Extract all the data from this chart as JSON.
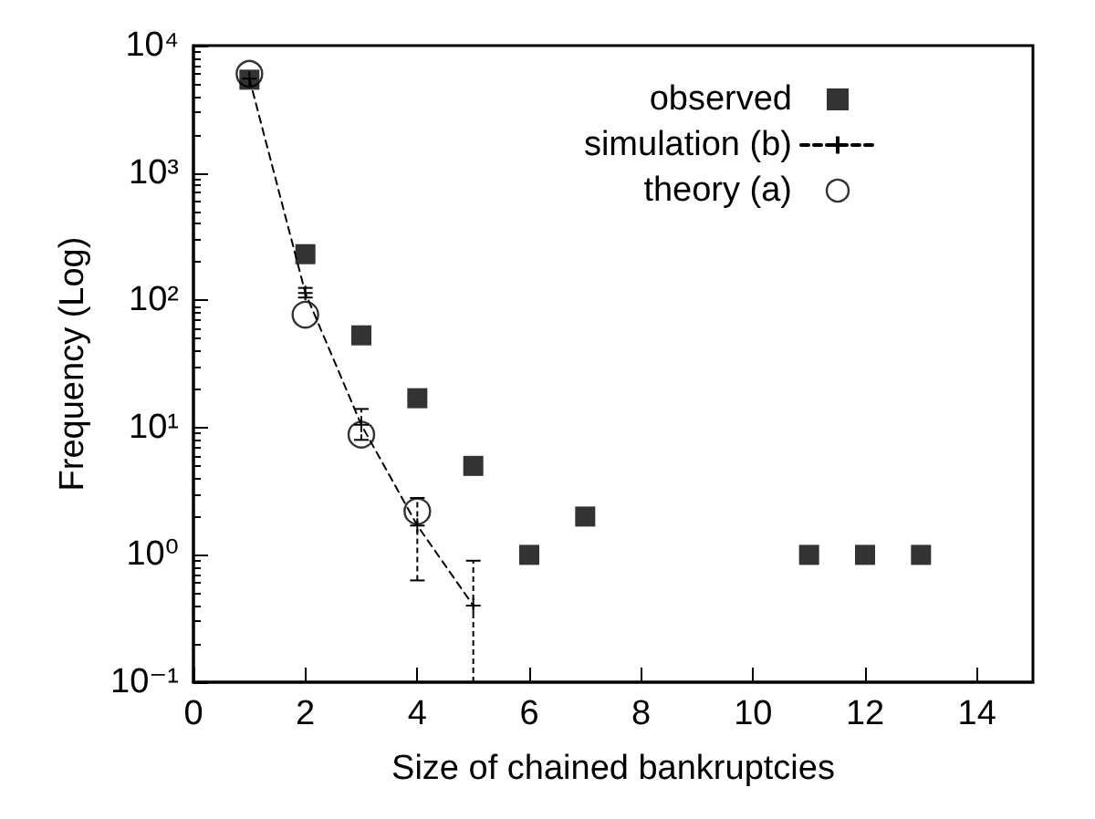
{
  "chart_data": {
    "type": "scatter",
    "xlabel": "Size of chained bankruptcies",
    "ylabel": "Frequency (Log)",
    "log": "y",
    "grid": false,
    "legend": "top right",
    "xlim": [
      0,
      15
    ],
    "xticks": [
      0,
      2,
      4,
      6,
      8,
      10,
      12,
      14
    ],
    "ylim": [
      0.1,
      10000
    ],
    "yticks": [
      {
        "value": 0.1,
        "label": "10⁻¹"
      },
      {
        "value": 1,
        "label": "10⁰"
      },
      {
        "value": 10,
        "label": "10¹"
      },
      {
        "value": 100,
        "label": "10²"
      },
      {
        "value": 1000,
        "label": "10³"
      },
      {
        "value": 10000,
        "label": "10⁴"
      }
    ],
    "series": [
      {
        "name": "observed",
        "marker": "square",
        "color": "#000000",
        "x": [
          1,
          2,
          3,
          4,
          5,
          6,
          7,
          11,
          12,
          13
        ],
        "values": [
          5400,
          230,
          53,
          17,
          5,
          1,
          2,
          1,
          1,
          1
        ]
      },
      {
        "name": "simulation (b)",
        "type": "line",
        "marker": "cross",
        "line_style": "dashed",
        "color": "#000000",
        "x": [
          1,
          2,
          3,
          4,
          5
        ],
        "values": [
          5500,
          114,
          10.5,
          1.7,
          0.4
        ],
        "errors": [
          null,
          [
            105,
            125
          ],
          [
            8,
            14
          ],
          [
            0.63,
            2.8
          ],
          [
            0.1,
            0.9
          ]
        ]
      },
      {
        "name": "theory (a)",
        "marker": "circle",
        "color": "#000000",
        "x": [
          1,
          2,
          3,
          4
        ],
        "values": [
          6000,
          77,
          8.8,
          2.2
        ]
      }
    ]
  }
}
